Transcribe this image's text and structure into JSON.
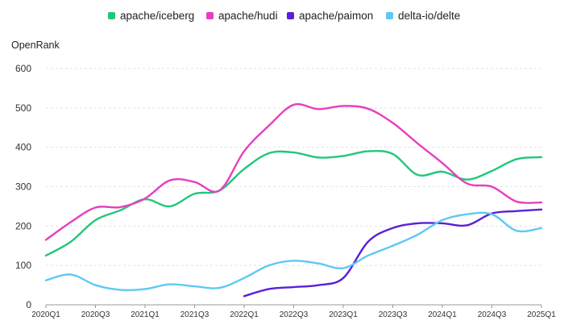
{
  "chart_data": {
    "type": "line",
    "ylabel": "OpenRank",
    "ylim": [
      0,
      600
    ],
    "yticks": [
      0,
      100,
      200,
      300,
      400,
      500,
      600
    ],
    "x": [
      "2020Q1",
      "2020Q2",
      "2020Q3",
      "2020Q4",
      "2021Q1",
      "2021Q2",
      "2021Q3",
      "2021Q4",
      "2022Q1",
      "2022Q2",
      "2022Q3",
      "2022Q4",
      "2023Q1",
      "2023Q2",
      "2023Q3",
      "2023Q4",
      "2024Q1",
      "2024Q2",
      "2024Q3",
      "2024Q4",
      "2025Q1"
    ],
    "xtick_labels": [
      "2020Q1",
      "2020Q3",
      "2021Q1",
      "2021Q3",
      "2022Q1",
      "2022Q3",
      "2023Q1",
      "2023Q3",
      "2024Q1",
      "2024Q3",
      "2025Q1"
    ],
    "grid": "horizontal",
    "legend_position": "top",
    "series": [
      {
        "name": "apache/iceberg",
        "color": "#22c77a",
        "values": [
          125,
          160,
          215,
          240,
          268,
          250,
          282,
          290,
          345,
          385,
          387,
          374,
          378,
          390,
          383,
          330,
          338,
          318,
          340,
          370,
          375
        ]
      },
      {
        "name": "apache/hudi",
        "color": "#e63fbf",
        "values": [
          165,
          210,
          247,
          248,
          270,
          316,
          312,
          290,
          390,
          455,
          508,
          497,
          505,
          498,
          462,
          410,
          360,
          308,
          300,
          262,
          260
        ]
      },
      {
        "name": "apache/paimon",
        "color": "#5c1fd8",
        "values": [
          null,
          null,
          null,
          null,
          null,
          null,
          null,
          null,
          22,
          40,
          45,
          50,
          68,
          160,
          195,
          207,
          207,
          202,
          232,
          238,
          242
        ]
      },
      {
        "name": "delta-io/delte",
        "color": "#5ec9f2",
        "values": [
          62,
          77,
          50,
          38,
          40,
          52,
          47,
          43,
          68,
          100,
          112,
          105,
          93,
          125,
          150,
          178,
          215,
          230,
          230,
          188,
          195
        ]
      }
    ]
  }
}
